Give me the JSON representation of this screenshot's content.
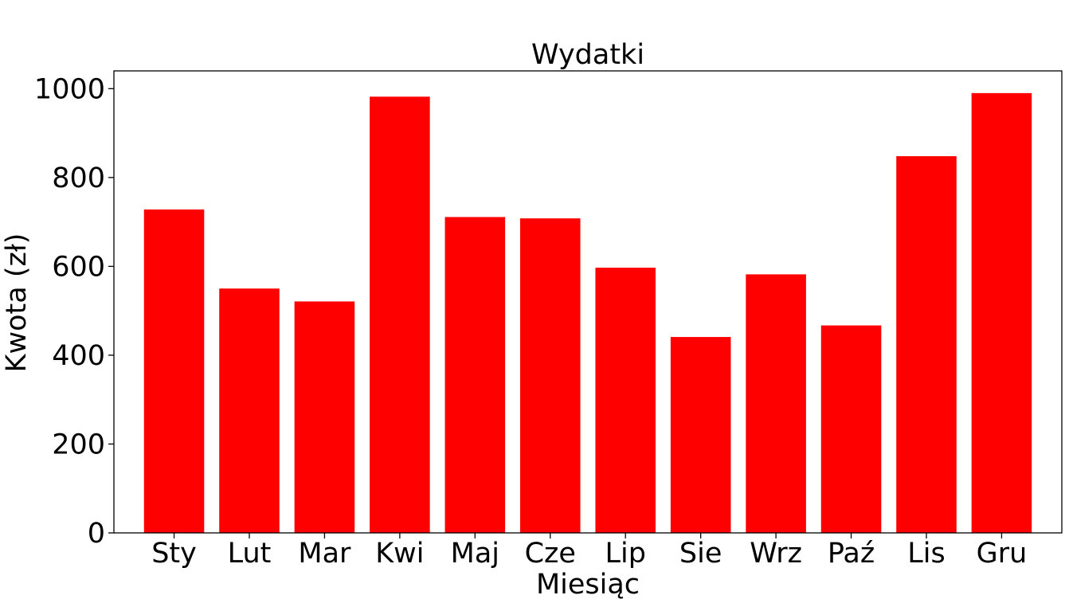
{
  "chart_data": {
    "type": "bar",
    "title": "Wydatki",
    "xlabel": "Miesiąc",
    "ylabel": "Kwota (zł)",
    "categories": [
      "Sty",
      "Lut",
      "Mar",
      "Kwi",
      "Maj",
      "Cze",
      "Lip",
      "Sie",
      "Wrz",
      "Paź",
      "Lis",
      "Gru"
    ],
    "values": [
      728,
      550,
      521,
      982,
      711,
      708,
      597,
      441,
      582,
      467,
      848,
      990
    ],
    "ylim": [
      0,
      1040
    ],
    "yticks": [
      0,
      200,
      400,
      600,
      800,
      1000
    ],
    "bar_color": "#ff0000",
    "grid": false,
    "legend": false
  }
}
